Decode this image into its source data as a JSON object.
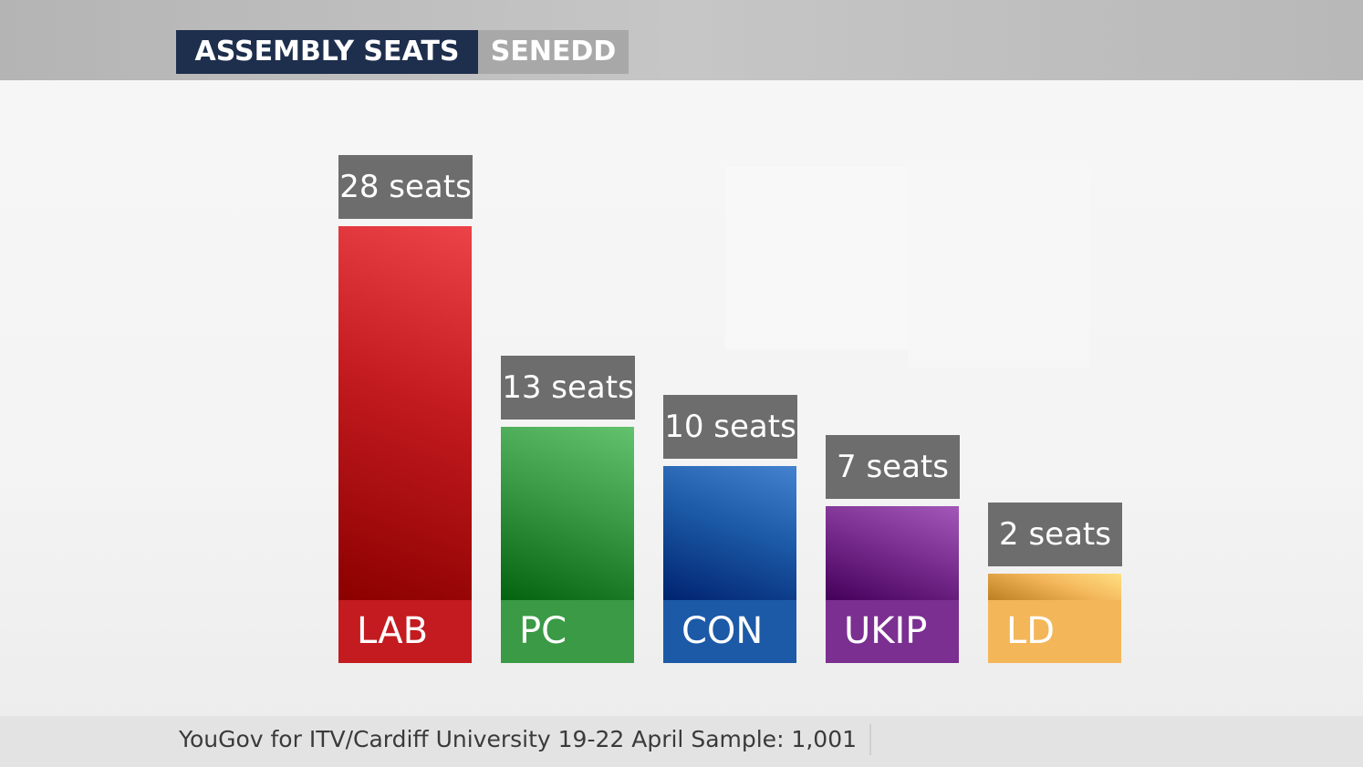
{
  "header": {
    "title": "ASSEMBLY SEATS",
    "subtitle": "SENEDD"
  },
  "colors": {
    "header_primary": "#1e2f4d",
    "header_secondary": "#a8a8a8",
    "value_label_bg": "#6d6d6d"
  },
  "chart_data": {
    "type": "bar",
    "title": "ASSEMBLY SEATS",
    "subtitle": "SENEDD",
    "categories": [
      "LAB",
      "PC",
      "CON",
      "UKIP",
      "LD"
    ],
    "values": [
      28,
      13,
      10,
      7,
      2
    ],
    "value_labels": [
      "28 seats",
      "13 seats",
      "10 seats",
      "7 seats",
      "2 seats"
    ],
    "colors": [
      "#c31b1f",
      "#3a9a45",
      "#1c5aa7",
      "#7b2f91",
      "#f3b75a"
    ],
    "xlabel": "",
    "ylabel": "",
    "grid": false,
    "legend": "none"
  },
  "footer": {
    "source": "YouGov for ITV/Cardiff University 19-22 April Sample: 1,001"
  }
}
